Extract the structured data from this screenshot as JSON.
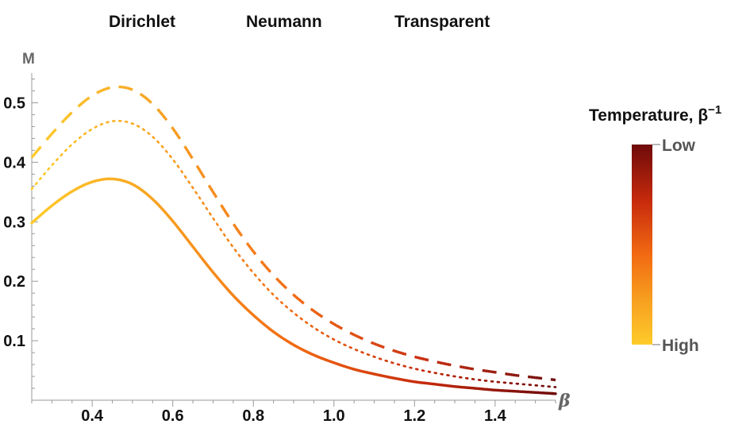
{
  "chart_data": {
    "type": "line",
    "xlabel": "β",
    "ylabel": "M",
    "xlim": [
      0.25,
      1.55
    ],
    "ylim": [
      0,
      0.55
    ],
    "x_ticks": [
      0.4,
      0.6,
      0.8,
      1.0,
      1.2,
      1.4
    ],
    "x_tick_labels": [
      "0.4",
      "0.6",
      "0.8",
      "1.0",
      "1.2",
      "1.4"
    ],
    "y_ticks": [
      0.1,
      0.2,
      0.3,
      0.4,
      0.5
    ],
    "y_tick_labels": [
      "0.1",
      "0.2",
      "0.3",
      "0.4",
      "0.5"
    ],
    "legend_position": "top",
    "series": [
      {
        "name": "Dirichlet",
        "style": "solid",
        "x": [
          0.25,
          0.3,
          0.35,
          0.4,
          0.45,
          0.5,
          0.55,
          0.6,
          0.65,
          0.7,
          0.75,
          0.8,
          0.85,
          0.9,
          0.95,
          1.0,
          1.05,
          1.1,
          1.15,
          1.2,
          1.25,
          1.3,
          1.35,
          1.4,
          1.45,
          1.5,
          1.55
        ],
        "y": [
          0.298,
          0.327,
          0.351,
          0.367,
          0.372,
          0.363,
          0.338,
          0.301,
          0.258,
          0.215,
          0.176,
          0.143,
          0.115,
          0.093,
          0.076,
          0.063,
          0.052,
          0.044,
          0.037,
          0.031,
          0.027,
          0.023,
          0.02,
          0.017,
          0.015,
          0.013,
          0.011
        ]
      },
      {
        "name": "Neumann",
        "style": "dashed",
        "x": [
          0.25,
          0.3,
          0.35,
          0.4,
          0.45,
          0.5,
          0.55,
          0.6,
          0.65,
          0.7,
          0.75,
          0.8,
          0.85,
          0.9,
          0.95,
          1.0,
          1.05,
          1.1,
          1.15,
          1.2,
          1.25,
          1.3,
          1.35,
          1.4,
          1.45,
          1.5,
          1.55
        ],
        "y": [
          0.408,
          0.448,
          0.484,
          0.512,
          0.526,
          0.522,
          0.498,
          0.457,
          0.405,
          0.35,
          0.297,
          0.25,
          0.21,
          0.177,
          0.15,
          0.128,
          0.11,
          0.095,
          0.083,
          0.073,
          0.065,
          0.058,
          0.052,
          0.047,
          0.042,
          0.038,
          0.034
        ]
      },
      {
        "name": "Transparent",
        "style": "dotted",
        "x": [
          0.25,
          0.3,
          0.35,
          0.4,
          0.45,
          0.5,
          0.55,
          0.6,
          0.65,
          0.7,
          0.75,
          0.8,
          0.85,
          0.9,
          0.95,
          1.0,
          1.05,
          1.1,
          1.15,
          1.2,
          1.25,
          1.3,
          1.35,
          1.4,
          1.45,
          1.5,
          1.55
        ],
        "y": [
          0.355,
          0.395,
          0.43,
          0.456,
          0.469,
          0.465,
          0.443,
          0.405,
          0.357,
          0.306,
          0.257,
          0.214,
          0.177,
          0.147,
          0.122,
          0.102,
          0.086,
          0.073,
          0.062,
          0.053,
          0.046,
          0.04,
          0.035,
          0.031,
          0.028,
          0.025,
          0.022
        ]
      }
    ],
    "colorbar": {
      "title": "Temperature, β",
      "title_superscript": "−1",
      "top_label": "Low",
      "bottom_label": "High",
      "colors": [
        "#6e0a0a",
        "#c62a0c",
        "#f26a12",
        "#f7a020",
        "#fecb2a"
      ]
    }
  }
}
